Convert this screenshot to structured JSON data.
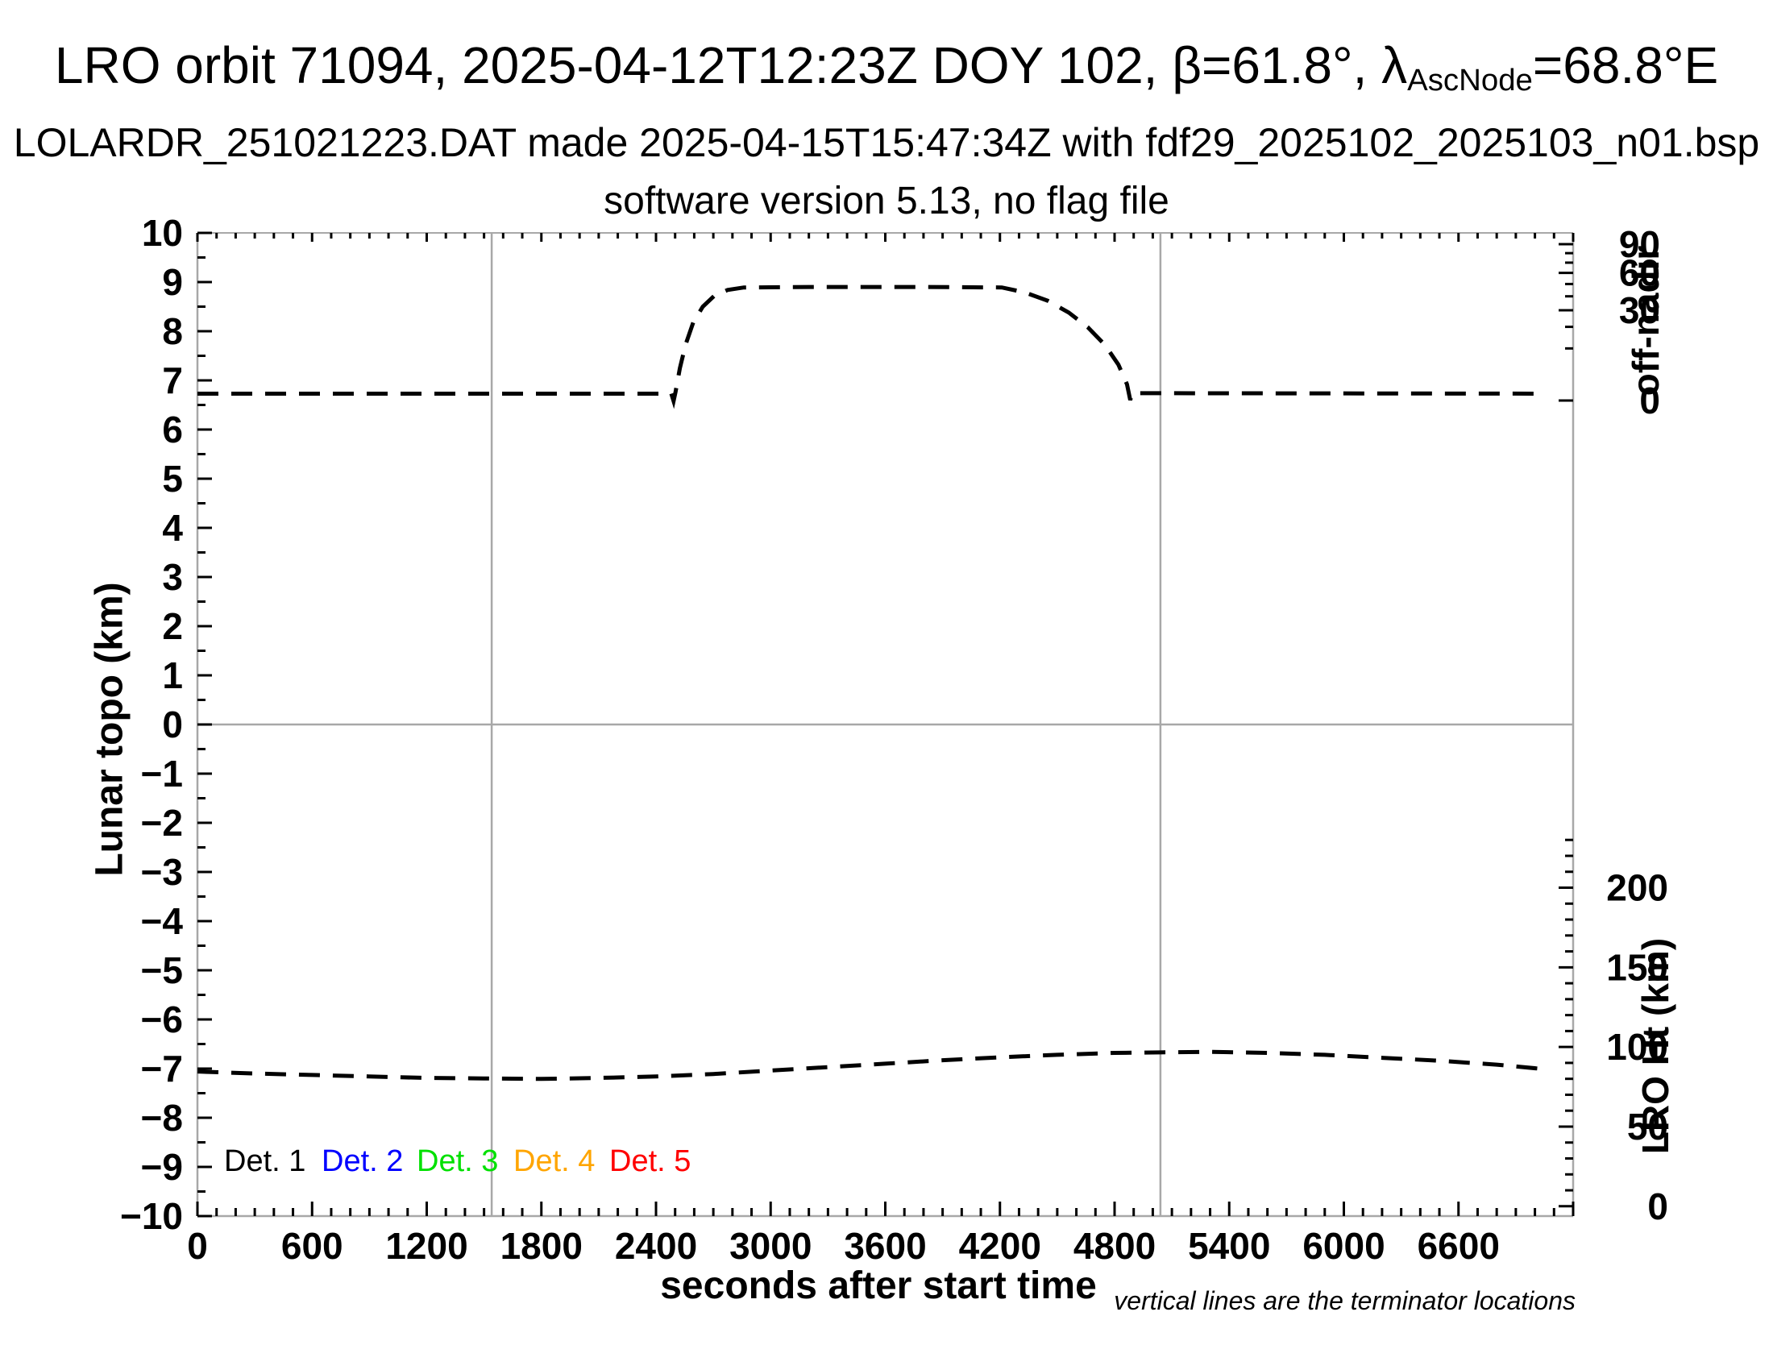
{
  "title": {
    "line1_prefix": "LRO orbit 71094, 2025-04-12T12:23Z DOY 102, β=61.8°, λ",
    "line1_sub": "AscNode",
    "line1_suffix": "=68.8°E",
    "line2": "LOLARDR_251021223.DAT made 2025-04-15T15:47:34Z with fdf29_2025102_2025103_n01.bsp",
    "line3": "software version 5.13, no flag file"
  },
  "annotation": "vertical lines are the terminator locations",
  "legend": {
    "items": [
      {
        "label": "Det. 1",
        "color": "#000000"
      },
      {
        "label": "Det. 2",
        "color": "#0000ff"
      },
      {
        "label": "Det. 3",
        "color": "#00e000"
      },
      {
        "label": "Det. 4",
        "color": "#ffa500"
      },
      {
        "label": "Det. 5",
        "color": "#ff0000"
      }
    ]
  },
  "colors": {
    "frame_gray": "#a8a8a8",
    "tick_black": "#000000",
    "curve_black": "#000000"
  },
  "chart_data": {
    "type": "line",
    "title": "LRO orbit 71094, 2025-04-12T12:23Z DOY 102, β=61.8°, λAscNode=68.8°E",
    "subtitle1": "LOLARDR_251021223.DAT made 2025-04-15T15:47:34Z with fdf29_2025102_2025103_n01.bsp",
    "subtitle2": "software version 5.13, no flag file",
    "xlabel": "seconds after start time",
    "xlim": [
      0,
      7200
    ],
    "x_major_ticks": [
      0,
      600,
      1200,
      1800,
      2400,
      3000,
      3600,
      4200,
      4800,
      5400,
      6000,
      6600
    ],
    "x_minor_step": 100,
    "left_axis": {
      "label": "Lunar topo (km)",
      "lim": [
        -10,
        10
      ],
      "major_step": 1,
      "minor_step": 0.5
    },
    "right_axis_top": {
      "label": "off-nadir",
      "labeled_ticks": [
        90,
        60,
        30,
        0
      ],
      "minor_ticks": [
        80,
        70,
        50,
        40,
        20,
        10
      ],
      "mapping": "tick position linear in sqrt(deg): left-axis value = 6.59 + 3.18*sqrt(deg/90)"
    },
    "right_axis_bottom": {
      "label": "LRO Ht (km)",
      "labeled_ticks": [
        200,
        150,
        100,
        50,
        0
      ],
      "minor_step_km": 10,
      "max_tick_km": 230,
      "mapping": "linear: left-axis value = -9.80 + 0.0324*km"
    },
    "gray_lines": {
      "horizontal_at_left_value": 0,
      "vertical_terminators_s": [
        1540,
        5040
      ]
    },
    "series": [
      {
        "name": "off-nadir angle",
        "linestyle": "dashed",
        "color": "#000000",
        "summary": {
          "baseline_deg": 0.2,
          "plateau_deg": 47,
          "slew_up_s": [
            2490,
            2860
          ],
          "plateau_s": [
            2860,
            4210
          ],
          "slew_down_s": [
            4210,
            4893
          ],
          "end_s": 7020
        },
        "points_t_leftunits": [
          [
            0,
            6.73
          ],
          [
            2480,
            6.73
          ],
          [
            2492,
            6.58
          ],
          [
            2502,
            6.76
          ],
          [
            2525,
            7.25
          ],
          [
            2555,
            7.73
          ],
          [
            2595,
            8.18
          ],
          [
            2645,
            8.5
          ],
          [
            2705,
            8.72
          ],
          [
            2775,
            8.84
          ],
          [
            2860,
            8.89
          ],
          [
            3200,
            8.9
          ],
          [
            3800,
            8.9
          ],
          [
            4210,
            8.89
          ],
          [
            4330,
            8.79
          ],
          [
            4450,
            8.62
          ],
          [
            4560,
            8.38
          ],
          [
            4660,
            8.08
          ],
          [
            4750,
            7.72
          ],
          [
            4820,
            7.32
          ],
          [
            4865,
            6.92
          ],
          [
            4882,
            6.6
          ],
          [
            4893,
            6.74
          ],
          [
            7020,
            6.73
          ]
        ]
      },
      {
        "name": "LRO height",
        "linestyle": "dashed",
        "color": "#000000",
        "summary": {
          "start_km": 85,
          "min_km": 80,
          "min_at_s": 1800,
          "max_km": 97,
          "max_at_s": 5300,
          "end_km": 86,
          "end_s": 7020
        },
        "points_t_leftunits": [
          [
            0,
            -7.06
          ],
          [
            300,
            -7.1
          ],
          [
            600,
            -7.13
          ],
          [
            900,
            -7.16
          ],
          [
            1200,
            -7.19
          ],
          [
            1500,
            -7.2
          ],
          [
            1800,
            -7.21
          ],
          [
            2100,
            -7.19
          ],
          [
            2400,
            -7.16
          ],
          [
            2700,
            -7.11
          ],
          [
            3000,
            -7.04
          ],
          [
            3300,
            -6.97
          ],
          [
            3600,
            -6.9
          ],
          [
            3900,
            -6.83
          ],
          [
            4200,
            -6.77
          ],
          [
            4500,
            -6.72
          ],
          [
            4800,
            -6.68
          ],
          [
            5040,
            -6.67
          ],
          [
            5300,
            -6.66
          ],
          [
            5600,
            -6.68
          ],
          [
            5900,
            -6.72
          ],
          [
            6200,
            -6.78
          ],
          [
            6500,
            -6.84
          ],
          [
            6800,
            -6.92
          ],
          [
            7020,
            -7.0
          ]
        ]
      }
    ]
  }
}
